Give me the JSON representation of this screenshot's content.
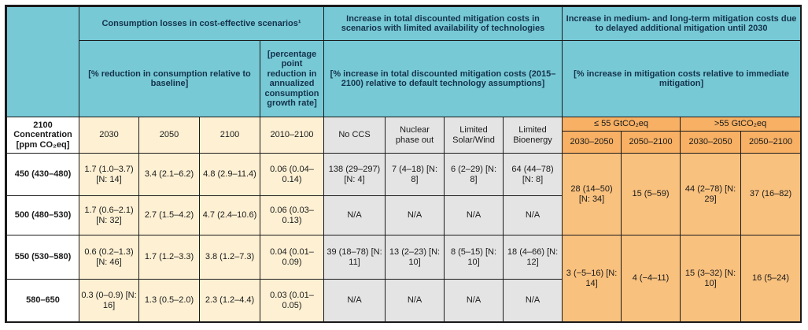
{
  "groups": {
    "consumption": "Consumption losses in cost-effective scenarios¹",
    "tech": "Increase in total discounted mitigation costs in scenarios with limited availability of technologies",
    "delay": "Increase in medium- and long-term mitigation costs due to delayed additional mitigation until 2030"
  },
  "units": {
    "consumption_reduction": "[% reduction in consumption relative to baseline]",
    "growth_rate": "[percentage point reduction in annualized consumption growth rate]",
    "tech": "[% increase in total discounted mitigation costs (2015–2100) relative to default technology assumptions]",
    "delay": "[% increase in mitigation costs relative to immediate mitigation]"
  },
  "row_header_title": "2100 Concentration [ppm CO₂eq]",
  "columns": {
    "c2030": "2030",
    "c2050": "2050",
    "c2100": "2100",
    "c2010_2100": "2010–2100",
    "no_ccs": "No CCS",
    "nuclear": "Nuclear phase out",
    "solar_wind": "Limited Solar/Wind",
    "bioenergy": "Limited Bioenergy",
    "le55": "≤ 55 GtCO₂eq",
    "gt55": ">55 GtCO₂eq",
    "p1": "2030–2050",
    "p2": "2050–2100",
    "p3": "2030–2050",
    "p4": "2050–2100"
  },
  "rows": [
    {
      "label": "450 (430–480)",
      "c2030": "1.7 (1.0–3.7) [N: 14]",
      "c2050": "3.4 (2.1–6.2)",
      "c2100": "4.8 (2.9–11.4)",
      "c2010_2100": "0.06 (0.04–0.14)",
      "no_ccs": "138 (29–297) [N: 4]",
      "nuclear": "7 (4–18) [N: 8]",
      "solar_wind": "6 (2–29) [N: 8]",
      "bioenergy": "64 (44–78) [N: 8]"
    },
    {
      "label": "500 (480–530)",
      "c2030": "1.7 (0.6–2.1) [N: 32]",
      "c2050": "2.7 (1.5–4.2)",
      "c2100": "4.7 (2.4–10.6)",
      "c2010_2100": "0.06 (0.03–0.13)",
      "no_ccs": "N/A",
      "nuclear": "N/A",
      "solar_wind": "N/A",
      "bioenergy": "N/A"
    },
    {
      "label": "550 (530–580)",
      "c2030": "0.6 (0.2–1.3) [N: 46]",
      "c2050": "1.7 (1.2–3.3)",
      "c2100": "3.8 (1.2–7.3)",
      "c2010_2100": "0.04 (0.01–0.09)",
      "no_ccs": "39 (18–78) [N: 11]",
      "nuclear": "13 (2–23) [N: 10]",
      "solar_wind": "8 (5–15) [N: 10]",
      "bioenergy": "18 (4–66) [N: 12]"
    },
    {
      "label": "580–650",
      "c2030": "0.3 (0–0.9) [N: 16]",
      "c2050": "1.3 (0.5–2.0)",
      "c2100": "2.3 (1.2–4.4)",
      "c2010_2100": "0.03 (0.01–0.05)",
      "no_ccs": "N/A",
      "nuclear": "N/A",
      "solar_wind": "N/A",
      "bioenergy": "N/A"
    }
  ],
  "delay_blocks": [
    {
      "p1": "28 (14–50) [N: 34]",
      "p2": "15 (5–59)",
      "p3": "44 (2–78) [N: 29]",
      "p4": "37 (16–82)"
    },
    {
      "p1": "3 (−5–16) [N: 14]",
      "p2": "4 (−4–11)",
      "p3": "15 (3–32) [N: 10]",
      "p4": "16 (5–24)"
    }
  ]
}
